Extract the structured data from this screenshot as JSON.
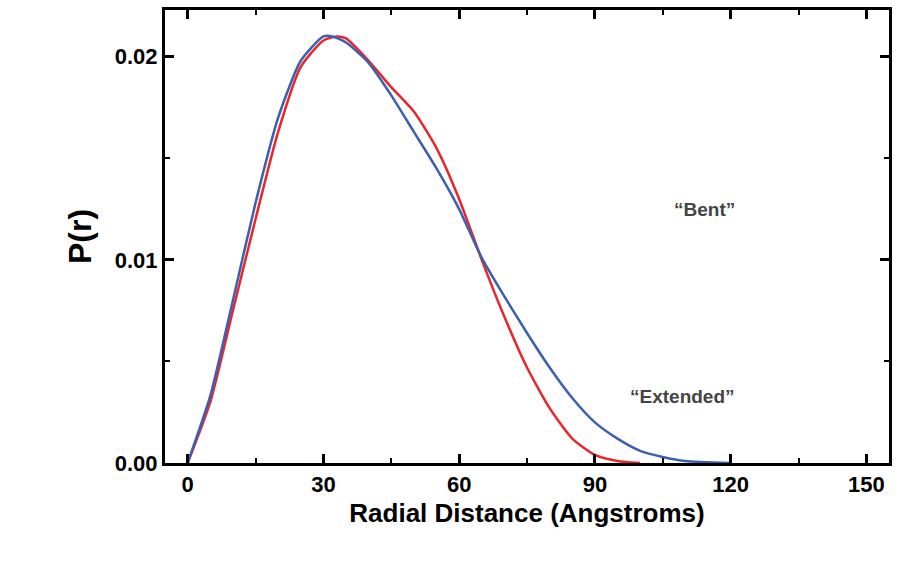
{
  "chart_data": {
    "type": "line",
    "x_label": "Radial Distance (Angstroms)",
    "y_label": "P(r)",
    "xlim": [
      -5,
      155
    ],
    "xticks": [
      0,
      30,
      60,
      90,
      120,
      150
    ],
    "ylim": [
      0,
      0.0223
    ],
    "yticks": [
      {
        "value": 0,
        "label": "0.00"
      },
      {
        "value": 0.01,
        "label": "0.01"
      },
      {
        "value": 0.02,
        "label": "0.02"
      }
    ],
    "grid": false,
    "series": [
      {
        "color": "#e8262b",
        "x": [
          0,
          5,
          10,
          15,
          20,
          25,
          30,
          33,
          35,
          40,
          45,
          50,
          55,
          60,
          65,
          70,
          75,
          80,
          85,
          90,
          95,
          100
        ],
        "values": [
          0,
          0.003,
          0.0075,
          0.012,
          0.0163,
          0.0195,
          0.0208,
          0.021,
          0.0209,
          0.0198,
          0.0185,
          0.0173,
          0.0155,
          0.013,
          0.01,
          0.0072,
          0.0047,
          0.0027,
          0.0012,
          0.0004,
          0.0001,
          0
        ]
      },
      {
        "color": "#3c5fb0",
        "x": [
          0,
          5,
          10,
          15,
          20,
          25,
          30,
          32,
          35,
          40,
          45,
          50,
          55,
          60,
          65,
          70,
          75,
          80,
          85,
          90,
          95,
          100,
          105,
          110,
          120
        ],
        "values": [
          0,
          0.0033,
          0.008,
          0.0128,
          0.017,
          0.0198,
          0.021,
          0.021,
          0.0207,
          0.0197,
          0.0181,
          0.0163,
          0.0145,
          0.0125,
          0.0101,
          0.0082,
          0.0064,
          0.0047,
          0.0032,
          0.002,
          0.0012,
          0.0006,
          0.0003,
          0.0001,
          0
        ]
      }
    ],
    "annotations": [
      "“Bent”",
      "“Extended”"
    ]
  }
}
